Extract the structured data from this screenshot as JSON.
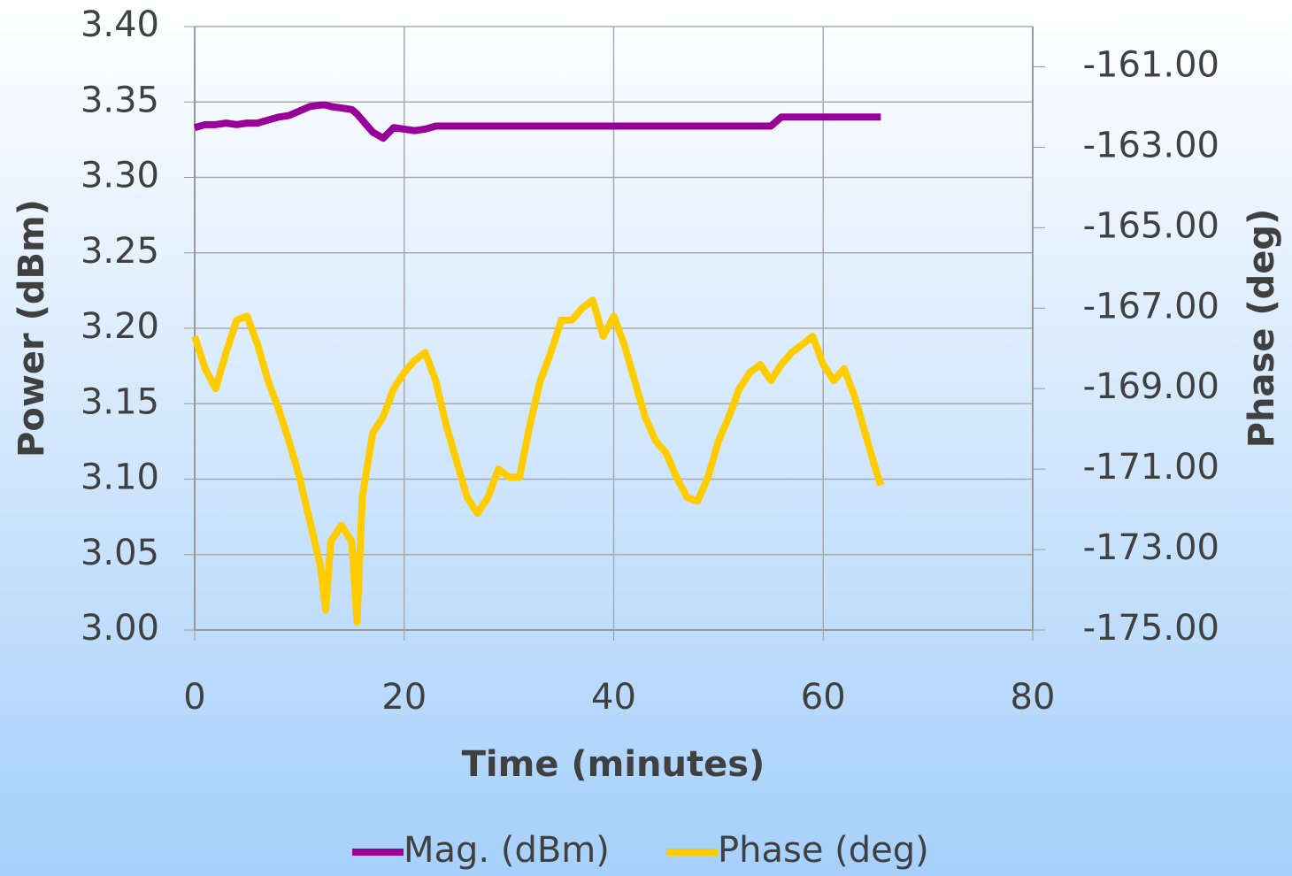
{
  "chart_data": {
    "type": "line",
    "xlabel": "Time (minutes)",
    "ylabel": "Power (dBm)",
    "y2label": "Phase (deg)",
    "x": [
      0,
      1,
      2,
      3,
      4,
      5,
      6,
      7,
      8,
      9,
      10,
      11,
      12,
      12.5,
      13,
      14,
      15,
      15.5,
      16,
      17,
      18,
      19,
      20,
      21,
      22,
      23,
      24,
      25,
      26,
      27,
      28,
      29,
      30,
      31,
      32,
      33,
      34,
      35,
      36,
      37,
      38,
      39,
      40,
      41,
      42,
      43,
      44,
      45,
      46,
      47,
      48,
      49,
      50,
      51,
      52,
      53,
      54,
      55,
      56,
      57,
      58,
      59,
      60,
      61,
      62,
      63,
      64,
      65,
      65.5
    ],
    "series": [
      {
        "name": "Mag. (dBm)",
        "color": "#990099",
        "axis": "y",
        "values": [
          3.333,
          3.335,
          3.335,
          3.336,
          3.335,
          3.336,
          3.336,
          3.338,
          3.34,
          3.341,
          3.344,
          3.347,
          3.348,
          3.348,
          3.347,
          3.346,
          3.345,
          3.342,
          3.338,
          3.33,
          3.326,
          3.333,
          3.332,
          3.331,
          3.332,
          3.334,
          3.334,
          3.334,
          3.334,
          3.334,
          3.334,
          3.334,
          3.334,
          3.334,
          3.334,
          3.334,
          3.334,
          3.334,
          3.334,
          3.334,
          3.334,
          3.334,
          3.334,
          3.334,
          3.334,
          3.334,
          3.334,
          3.334,
          3.334,
          3.334,
          3.334,
          3.334,
          3.334,
          3.334,
          3.334,
          3.334,
          3.334,
          3.334,
          3.34,
          3.34,
          3.34,
          3.34,
          3.34,
          3.34,
          3.34,
          3.34,
          3.34,
          3.34,
          3.34
        ]
      },
      {
        "name": "Phase (deg)",
        "color": "#ffcc00",
        "axis": "y2",
        "values": [
          -167.7,
          -168.5,
          -169.0,
          -168.1,
          -167.3,
          -167.2,
          -167.9,
          -168.8,
          -169.5,
          -170.3,
          -171.2,
          -172.3,
          -173.4,
          -174.5,
          -172.8,
          -172.4,
          -172.8,
          -174.8,
          -171.7,
          -170.1,
          -169.7,
          -169.0,
          -168.6,
          -168.3,
          -168.1,
          -168.8,
          -169.9,
          -170.8,
          -171.7,
          -172.1,
          -171.7,
          -171.0,
          -171.2,
          -171.2,
          -169.9,
          -168.8,
          -168.1,
          -167.3,
          -167.3,
          -167.0,
          -166.8,
          -167.7,
          -167.2,
          -167.9,
          -168.8,
          -169.7,
          -170.3,
          -170.6,
          -171.2,
          -171.7,
          -171.8,
          -171.2,
          -170.3,
          -169.7,
          -169.0,
          -168.6,
          -168.4,
          -168.8,
          -168.4,
          -168.1,
          -167.9,
          -167.7,
          -168.4,
          -168.8,
          -168.5,
          -169.2,
          -170.1,
          -171.0,
          -171.4
        ]
      }
    ],
    "xlim": [
      0,
      80
    ],
    "xticks": [
      0,
      20,
      40,
      60,
      80
    ],
    "ylim": [
      3.0,
      3.4
    ],
    "yticks": [
      {
        "value": 3.0,
        "label": "3.00"
      },
      {
        "value": 3.05,
        "label": "3.05"
      },
      {
        "value": 3.1,
        "label": "3.10"
      },
      {
        "value": 3.15,
        "label": "3.15"
      },
      {
        "value": 3.2,
        "label": "3.20"
      },
      {
        "value": 3.25,
        "label": "3.25"
      },
      {
        "value": 3.3,
        "label": "3.30"
      },
      {
        "value": 3.35,
        "label": "3.35"
      },
      {
        "value": 3.4,
        "label": "3.40"
      }
    ],
    "y2lim": [
      -175,
      -160
    ],
    "y2ticks": [
      {
        "value": -175,
        "label": "-175.00"
      },
      {
        "value": -173,
        "label": "-173.00"
      },
      {
        "value": -171,
        "label": "-171.00"
      },
      {
        "value": -169,
        "label": "-169.00"
      },
      {
        "value": -167,
        "label": "-167.00"
      },
      {
        "value": -165,
        "label": "-165.00"
      },
      {
        "value": -163,
        "label": "-163.00"
      },
      {
        "value": -161,
        "label": "-161.00"
      }
    ],
    "grid": true,
    "legend": "bottom"
  }
}
